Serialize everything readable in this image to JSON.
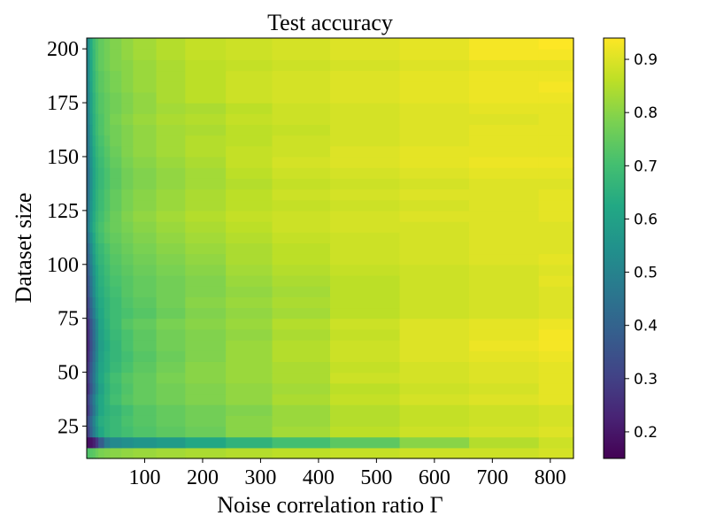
{
  "chart_data": {
    "type": "heatmap",
    "title": "Test accuracy",
    "xlabel": "Noise correlation ratio Γ",
    "ylabel": "Dataset size",
    "xlim": [
      0,
      840
    ],
    "ylim": [
      10,
      205
    ],
    "x_ticks": [
      100,
      200,
      300,
      400,
      500,
      600,
      700,
      800
    ],
    "y_ticks": [
      25,
      50,
      75,
      100,
      125,
      150,
      175,
      200
    ],
    "colorbar": {
      "range": [
        0.15,
        0.94
      ],
      "ticks": [
        0.2,
        0.3,
        0.4,
        0.5,
        0.6,
        0.7,
        0.8,
        0.9
      ],
      "colormap": "viridis"
    },
    "x_edges": [
      0,
      5,
      10,
      15,
      20,
      30,
      40,
      60,
      80,
      120,
      170,
      240,
      320,
      420,
      540,
      660,
      780,
      840
    ],
    "y_edges": [
      10,
      15,
      20,
      25,
      30,
      35,
      40,
      45,
      50,
      55,
      60,
      65,
      70,
      75,
      80,
      85,
      90,
      95,
      100,
      105,
      110,
      115,
      120,
      125,
      130,
      135,
      140,
      145,
      150,
      155,
      160,
      165,
      170,
      175,
      180,
      185,
      190,
      195,
      200,
      205
    ],
    "values": [
      [
        0.72,
        0.73,
        0.74,
        0.76,
        0.78,
        0.79,
        0.8,
        0.81,
        0.82,
        0.83,
        0.84,
        0.85,
        0.86,
        0.87,
        0.88,
        0.88,
        0.89
      ],
      [
        0.18,
        0.19,
        0.22,
        0.28,
        0.38,
        0.48,
        0.52,
        0.54,
        0.56,
        0.58,
        0.62,
        0.66,
        0.7,
        0.74,
        0.8,
        0.85,
        0.88
      ],
      [
        0.3,
        0.4,
        0.48,
        0.55,
        0.62,
        0.66,
        0.68,
        0.7,
        0.72,
        0.74,
        0.76,
        0.8,
        0.83,
        0.86,
        0.88,
        0.89,
        0.9
      ],
      [
        0.33,
        0.42,
        0.5,
        0.58,
        0.64,
        0.66,
        0.68,
        0.71,
        0.73,
        0.75,
        0.77,
        0.8,
        0.82,
        0.85,
        0.87,
        0.88,
        0.89
      ],
      [
        0.28,
        0.38,
        0.46,
        0.54,
        0.62,
        0.65,
        0.67,
        0.7,
        0.73,
        0.75,
        0.77,
        0.79,
        0.82,
        0.85,
        0.87,
        0.88,
        0.89
      ],
      [
        0.3,
        0.4,
        0.48,
        0.56,
        0.62,
        0.66,
        0.7,
        0.73,
        0.75,
        0.77,
        0.79,
        0.81,
        0.84,
        0.87,
        0.89,
        0.9,
        0.91
      ],
      [
        0.26,
        0.36,
        0.44,
        0.52,
        0.6,
        0.65,
        0.69,
        0.72,
        0.75,
        0.77,
        0.79,
        0.81,
        0.83,
        0.86,
        0.88,
        0.89,
        0.91
      ],
      [
        0.28,
        0.38,
        0.46,
        0.54,
        0.62,
        0.66,
        0.7,
        0.73,
        0.75,
        0.78,
        0.8,
        0.82,
        0.84,
        0.88,
        0.89,
        0.9,
        0.91
      ],
      [
        0.27,
        0.37,
        0.45,
        0.53,
        0.61,
        0.64,
        0.68,
        0.71,
        0.74,
        0.77,
        0.8,
        0.82,
        0.84,
        0.87,
        0.89,
        0.9,
        0.91
      ],
      [
        0.25,
        0.35,
        0.43,
        0.51,
        0.6,
        0.64,
        0.67,
        0.7,
        0.73,
        0.76,
        0.79,
        0.82,
        0.85,
        0.88,
        0.9,
        0.91,
        0.92
      ],
      [
        0.24,
        0.34,
        0.42,
        0.5,
        0.59,
        0.63,
        0.67,
        0.71,
        0.74,
        0.77,
        0.79,
        0.82,
        0.85,
        0.88,
        0.9,
        0.92,
        0.93
      ],
      [
        0.25,
        0.35,
        0.43,
        0.51,
        0.6,
        0.64,
        0.68,
        0.71,
        0.74,
        0.77,
        0.79,
        0.81,
        0.84,
        0.87,
        0.9,
        0.91,
        0.93
      ],
      [
        0.26,
        0.36,
        0.44,
        0.52,
        0.61,
        0.65,
        0.69,
        0.73,
        0.75,
        0.78,
        0.8,
        0.82,
        0.85,
        0.88,
        0.9,
        0.91,
        0.92
      ],
      [
        0.3,
        0.4,
        0.48,
        0.56,
        0.62,
        0.66,
        0.69,
        0.71,
        0.73,
        0.76,
        0.79,
        0.81,
        0.83,
        0.86,
        0.88,
        0.89,
        0.9
      ],
      [
        0.32,
        0.42,
        0.5,
        0.58,
        0.63,
        0.66,
        0.69,
        0.72,
        0.74,
        0.77,
        0.8,
        0.82,
        0.84,
        0.86,
        0.88,
        0.89,
        0.9
      ],
      [
        0.35,
        0.45,
        0.53,
        0.6,
        0.64,
        0.67,
        0.7,
        0.73,
        0.75,
        0.77,
        0.79,
        0.81,
        0.83,
        0.86,
        0.88,
        0.89,
        0.9
      ],
      [
        0.36,
        0.46,
        0.54,
        0.61,
        0.65,
        0.68,
        0.71,
        0.73,
        0.75,
        0.77,
        0.79,
        0.82,
        0.84,
        0.86,
        0.88,
        0.89,
        0.91
      ],
      [
        0.38,
        0.48,
        0.56,
        0.62,
        0.66,
        0.69,
        0.72,
        0.74,
        0.76,
        0.78,
        0.8,
        0.83,
        0.85,
        0.87,
        0.88,
        0.89,
        0.9
      ],
      [
        0.4,
        0.5,
        0.58,
        0.64,
        0.67,
        0.7,
        0.73,
        0.75,
        0.77,
        0.79,
        0.81,
        0.84,
        0.86,
        0.88,
        0.89,
        0.9,
        0.91
      ],
      [
        0.42,
        0.52,
        0.6,
        0.65,
        0.68,
        0.71,
        0.74,
        0.76,
        0.78,
        0.8,
        0.82,
        0.84,
        0.86,
        0.88,
        0.89,
        0.9,
        0.9
      ],
      [
        0.45,
        0.55,
        0.62,
        0.67,
        0.7,
        0.73,
        0.75,
        0.77,
        0.79,
        0.81,
        0.83,
        0.85,
        0.87,
        0.88,
        0.89,
        0.9,
        0.9
      ],
      [
        0.48,
        0.58,
        0.64,
        0.68,
        0.71,
        0.74,
        0.76,
        0.78,
        0.8,
        0.82,
        0.84,
        0.86,
        0.88,
        0.89,
        0.89,
        0.9,
        0.9
      ],
      [
        0.47,
        0.57,
        0.63,
        0.67,
        0.7,
        0.73,
        0.76,
        0.79,
        0.81,
        0.83,
        0.85,
        0.87,
        0.88,
        0.89,
        0.9,
        0.9,
        0.91
      ],
      [
        0.46,
        0.56,
        0.62,
        0.66,
        0.69,
        0.72,
        0.75,
        0.78,
        0.8,
        0.82,
        0.84,
        0.86,
        0.87,
        0.88,
        0.89,
        0.9,
        0.91
      ],
      [
        0.45,
        0.55,
        0.62,
        0.66,
        0.69,
        0.72,
        0.75,
        0.78,
        0.8,
        0.82,
        0.84,
        0.86,
        0.88,
        0.89,
        0.9,
        0.9,
        0.91
      ],
      [
        0.44,
        0.54,
        0.61,
        0.65,
        0.68,
        0.71,
        0.74,
        0.77,
        0.79,
        0.81,
        0.83,
        0.85,
        0.87,
        0.88,
        0.89,
        0.9,
        0.9
      ],
      [
        0.44,
        0.54,
        0.61,
        0.65,
        0.68,
        0.71,
        0.74,
        0.77,
        0.79,
        0.81,
        0.83,
        0.86,
        0.88,
        0.89,
        0.9,
        0.91,
        0.91
      ],
      [
        0.45,
        0.55,
        0.62,
        0.66,
        0.69,
        0.72,
        0.75,
        0.78,
        0.8,
        0.82,
        0.84,
        0.87,
        0.89,
        0.9,
        0.91,
        0.92,
        0.92
      ],
      [
        0.46,
        0.56,
        0.63,
        0.67,
        0.7,
        0.73,
        0.76,
        0.79,
        0.81,
        0.83,
        0.85,
        0.87,
        0.88,
        0.9,
        0.91,
        0.91,
        0.91
      ],
      [
        0.47,
        0.57,
        0.64,
        0.68,
        0.71,
        0.74,
        0.77,
        0.79,
        0.81,
        0.83,
        0.85,
        0.86,
        0.88,
        0.89,
        0.9,
        0.91,
        0.91
      ],
      [
        0.48,
        0.58,
        0.65,
        0.69,
        0.72,
        0.75,
        0.77,
        0.79,
        0.81,
        0.83,
        0.84,
        0.86,
        0.87,
        0.89,
        0.9,
        0.91,
        0.91
      ],
      [
        0.49,
        0.59,
        0.65,
        0.69,
        0.72,
        0.75,
        0.78,
        0.8,
        0.82,
        0.84,
        0.85,
        0.87,
        0.88,
        0.89,
        0.9,
        0.9,
        0.91
      ],
      [
        0.5,
        0.6,
        0.66,
        0.7,
        0.73,
        0.75,
        0.77,
        0.79,
        0.81,
        0.83,
        0.84,
        0.86,
        0.88,
        0.89,
        0.9,
        0.91,
        0.91
      ],
      [
        0.5,
        0.6,
        0.66,
        0.7,
        0.73,
        0.75,
        0.77,
        0.79,
        0.81,
        0.84,
        0.86,
        0.88,
        0.89,
        0.9,
        0.91,
        0.92,
        0.92
      ],
      [
        0.51,
        0.61,
        0.67,
        0.71,
        0.74,
        0.76,
        0.78,
        0.8,
        0.82,
        0.84,
        0.86,
        0.88,
        0.89,
        0.9,
        0.91,
        0.92,
        0.93
      ],
      [
        0.52,
        0.62,
        0.67,
        0.71,
        0.74,
        0.76,
        0.78,
        0.8,
        0.82,
        0.84,
        0.86,
        0.88,
        0.89,
        0.9,
        0.91,
        0.92,
        0.92
      ],
      [
        0.52,
        0.62,
        0.68,
        0.72,
        0.75,
        0.77,
        0.79,
        0.8,
        0.82,
        0.84,
        0.86,
        0.87,
        0.88,
        0.89,
        0.9,
        0.91,
        0.91
      ],
      [
        0.53,
        0.63,
        0.68,
        0.72,
        0.75,
        0.77,
        0.79,
        0.81,
        0.83,
        0.85,
        0.87,
        0.88,
        0.89,
        0.9,
        0.91,
        0.93,
        0.93
      ],
      [
        0.53,
        0.63,
        0.69,
        0.72,
        0.75,
        0.77,
        0.79,
        0.81,
        0.83,
        0.85,
        0.87,
        0.88,
        0.89,
        0.9,
        0.91,
        0.93,
        0.94
      ]
    ]
  }
}
